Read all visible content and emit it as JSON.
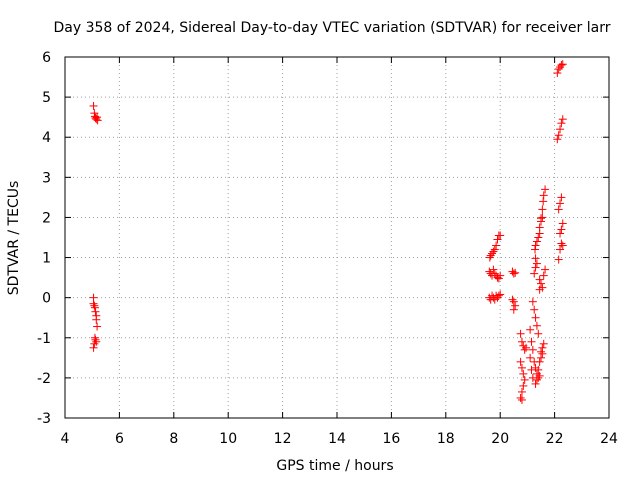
{
  "chart_data": {
    "type": "scatter",
    "title": "Day 358 of 2024, Sidereal Day-to-day VTEC variation (SDTVAR) for receiver larr",
    "xlabel": "GPS time / hours",
    "ylabel": "SDTVAR / TECUs",
    "xlim": [
      4,
      24
    ],
    "ylim": [
      -3,
      6
    ],
    "xticks": [
      "4",
      "6",
      "8",
      "10",
      "12",
      "14",
      "16",
      "18",
      "20",
      "22",
      "24"
    ],
    "yticks": [
      "-3",
      "-2",
      "-1",
      "0",
      "1",
      "2",
      "3",
      "4",
      "5",
      "6"
    ],
    "grid": true,
    "marker": "+",
    "color": "#ff0000",
    "series": [
      {
        "name": "SDTVAR",
        "points": [
          [
            5.05,
            4.78
          ],
          [
            5.08,
            4.6
          ],
          [
            5.1,
            4.52
          ],
          [
            5.12,
            4.48
          ],
          [
            5.15,
            4.45
          ],
          [
            5.18,
            4.5
          ],
          [
            5.2,
            4.42
          ],
          [
            5.05,
            0.0
          ],
          [
            5.05,
            -0.15
          ],
          [
            5.08,
            -0.2
          ],
          [
            5.1,
            -0.25
          ],
          [
            5.12,
            -0.35
          ],
          [
            5.15,
            -0.45
          ],
          [
            5.15,
            -0.55
          ],
          [
            5.18,
            -0.72
          ],
          [
            5.1,
            -1.0
          ],
          [
            5.12,
            -1.05
          ],
          [
            5.08,
            -1.15
          ],
          [
            5.05,
            -1.25
          ],
          [
            5.15,
            -1.1
          ],
          [
            19.62,
            1.0
          ],
          [
            19.65,
            1.05
          ],
          [
            19.7,
            1.1
          ],
          [
            19.75,
            1.15
          ],
          [
            19.8,
            1.2
          ],
          [
            19.6,
            0.65
          ],
          [
            19.65,
            0.6
          ],
          [
            19.7,
            0.55
          ],
          [
            19.75,
            0.7
          ],
          [
            19.8,
            0.6
          ],
          [
            19.85,
            0.55
          ],
          [
            19.9,
            0.5
          ],
          [
            19.95,
            0.48
          ],
          [
            20.0,
            0.55
          ],
          [
            19.6,
            0.0
          ],
          [
            19.65,
            -0.05
          ],
          [
            19.7,
            0.05
          ],
          [
            19.75,
            0.0
          ],
          [
            19.8,
            -0.05
          ],
          [
            19.85,
            0.05
          ],
          [
            19.9,
            0.0
          ],
          [
            19.95,
            0.05
          ],
          [
            20.0,
            0.08
          ],
          [
            19.85,
            1.3
          ],
          [
            19.9,
            1.45
          ],
          [
            19.95,
            1.55
          ],
          [
            20.0,
            1.55
          ],
          [
            20.45,
            0.65
          ],
          [
            20.5,
            0.6
          ],
          [
            20.55,
            0.62
          ],
          [
            20.45,
            -0.05
          ],
          [
            20.5,
            -0.1
          ],
          [
            20.55,
            -0.2
          ],
          [
            20.5,
            -0.3
          ],
          [
            20.75,
            -0.9
          ],
          [
            20.8,
            -1.1
          ],
          [
            20.85,
            -1.2
          ],
          [
            20.9,
            -1.3
          ],
          [
            20.95,
            -1.25
          ],
          [
            20.75,
            -1.6
          ],
          [
            20.8,
            -1.75
          ],
          [
            20.85,
            -1.9
          ],
          [
            20.9,
            -2.05
          ],
          [
            20.85,
            -2.2
          ],
          [
            20.8,
            -2.35
          ],
          [
            20.75,
            -2.5
          ],
          [
            20.8,
            -2.55
          ],
          [
            21.1,
            -0.8
          ],
          [
            21.15,
            -1.1
          ],
          [
            21.2,
            -1.3
          ],
          [
            21.25,
            -1.6
          ],
          [
            21.3,
            -1.75
          ],
          [
            21.35,
            -1.9
          ],
          [
            21.4,
            -2.0
          ],
          [
            21.45,
            -1.95
          ],
          [
            21.1,
            -1.5
          ],
          [
            21.15,
            -1.8
          ],
          [
            21.2,
            -2.0
          ],
          [
            21.3,
            -2.15
          ],
          [
            21.35,
            -2.05
          ],
          [
            21.4,
            -1.8
          ],
          [
            21.45,
            -1.6
          ],
          [
            21.5,
            -1.5
          ],
          [
            21.5,
            -1.35
          ],
          [
            21.55,
            -1.25
          ],
          [
            21.6,
            -1.15
          ],
          [
            21.55,
            -1.4
          ],
          [
            21.2,
            -0.1
          ],
          [
            21.25,
            -0.3
          ],
          [
            21.3,
            -0.5
          ],
          [
            21.35,
            -0.7
          ],
          [
            21.4,
            -0.9
          ],
          [
            21.25,
            0.6
          ],
          [
            21.3,
            0.75
          ],
          [
            21.35,
            0.85
          ],
          [
            21.3,
            0.98
          ],
          [
            21.28,
            1.2
          ],
          [
            21.3,
            1.3
          ],
          [
            21.35,
            1.4
          ],
          [
            21.4,
            1.5
          ],
          [
            21.45,
            1.6
          ],
          [
            21.45,
            1.75
          ],
          [
            21.5,
            1.9
          ],
          [
            21.55,
            2.0
          ],
          [
            21.5,
            1.98
          ],
          [
            21.45,
            0.2
          ],
          [
            21.5,
            0.35
          ],
          [
            21.45,
            0.45
          ],
          [
            21.55,
            0.25
          ],
          [
            21.6,
            0.55
          ],
          [
            21.65,
            0.7
          ],
          [
            21.55,
            2.2
          ],
          [
            21.58,
            2.4
          ],
          [
            21.6,
            2.55
          ],
          [
            21.65,
            2.7
          ],
          [
            22.15,
            0.95
          ],
          [
            22.2,
            1.2
          ],
          [
            22.25,
            1.35
          ],
          [
            22.3,
            1.3
          ],
          [
            22.2,
            1.6
          ],
          [
            22.25,
            1.7
          ],
          [
            22.3,
            1.85
          ],
          [
            22.15,
            2.2
          ],
          [
            22.2,
            2.35
          ],
          [
            22.25,
            2.5
          ],
          [
            22.1,
            3.95
          ],
          [
            22.15,
            4.05
          ],
          [
            22.2,
            4.2
          ],
          [
            22.25,
            4.35
          ],
          [
            22.3,
            4.45
          ],
          [
            22.1,
            5.6
          ],
          [
            22.15,
            5.7
          ],
          [
            22.2,
            5.75
          ],
          [
            22.25,
            5.8
          ],
          [
            22.3,
            5.82
          ]
        ]
      }
    ]
  }
}
